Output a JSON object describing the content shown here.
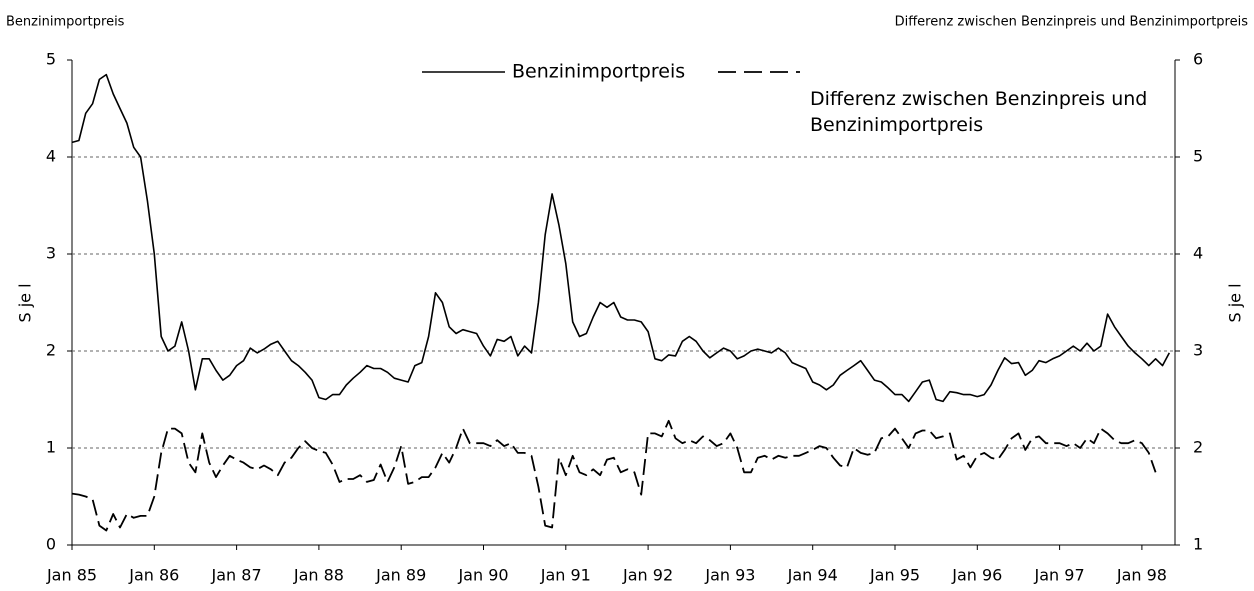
{
  "chart_data": {
    "type": "line",
    "left_title": "Benzinimportpreis",
    "right_title": "Differenz zwischen Benzinpreis und Benzinimportpreis",
    "y_label": "S je l",
    "y2_label": "S je l",
    "categories": [
      "Jan 85",
      null,
      null,
      null,
      null,
      null,
      null,
      null,
      null,
      null,
      null,
      null,
      "Jan 86",
      null,
      null,
      null,
      null,
      null,
      null,
      null,
      null,
      null,
      null,
      null,
      "Jan 87",
      null,
      null,
      null,
      null,
      null,
      null,
      null,
      null,
      null,
      null,
      null,
      "Jan 88",
      null,
      null,
      null,
      null,
      null,
      null,
      null,
      null,
      null,
      null,
      null,
      "Jan 89",
      null,
      null,
      null,
      null,
      null,
      null,
      null,
      null,
      null,
      null,
      null,
      "Jan 90",
      null,
      null,
      null,
      null,
      null,
      null,
      null,
      null,
      null,
      null,
      null,
      "Jan 91",
      null,
      null,
      null,
      null,
      null,
      null,
      null,
      null,
      null,
      null,
      null,
      "Jan 92",
      null,
      null,
      null,
      null,
      null,
      null,
      null,
      null,
      null,
      null,
      null,
      "Jan 93",
      null,
      null,
      null,
      null,
      null,
      null,
      null,
      null,
      null,
      null,
      null,
      "Jan 94",
      null,
      null,
      null,
      null,
      null,
      null,
      null,
      null,
      null,
      null,
      null,
      "Jan 95",
      null,
      null,
      null,
      null,
      null,
      null,
      null,
      null,
      null,
      null,
      null,
      "Jan 96",
      null,
      null,
      null,
      null,
      null,
      null,
      null,
      null,
      null,
      null,
      null,
      "Jan 97",
      null,
      null,
      null,
      null,
      null,
      null,
      null,
      null,
      null,
      null,
      null,
      "Jan 98",
      null,
      null,
      null,
      null
    ],
    "series": [
      {
        "name": "Benzinimportpreis",
        "color": "#000000",
        "dashed": false,
        "values": [
          4.15,
          4.17,
          4.45,
          4.55,
          4.8,
          4.85,
          4.65,
          4.5,
          4.35,
          4.1,
          4.0,
          3.55,
          3.0,
          2.15,
          2.0,
          2.05,
          2.3,
          2.0,
          1.6,
          1.92,
          1.92,
          1.8,
          1.7,
          1.75,
          1.85,
          1.9,
          2.03,
          1.98,
          2.02,
          2.07,
          2.1,
          2.0,
          1.9,
          1.85,
          1.78,
          1.7,
          1.52,
          1.5,
          1.55,
          1.55,
          1.65,
          1.72,
          1.78,
          1.85,
          1.82,
          1.82,
          1.78,
          1.72,
          1.7,
          1.68,
          1.85,
          1.88,
          2.15,
          2.6,
          2.5,
          2.25,
          2.18,
          2.22,
          2.2,
          2.18,
          2.05,
          1.95,
          2.12,
          2.1,
          2.15,
          1.95,
          2.05,
          1.98,
          2.5,
          3.2,
          3.62,
          3.3,
          2.9,
          2.3,
          2.15,
          2.18,
          2.35,
          2.5,
          2.45,
          2.5,
          2.35,
          2.32,
          2.32,
          2.3,
          2.2,
          1.92,
          1.9,
          1.96,
          1.95,
          2.1,
          2.15,
          2.1,
          2.0,
          1.93,
          1.98,
          2.03,
          2.0,
          1.92,
          1.95,
          2.0,
          2.02,
          2.0,
          1.98,
          2.03,
          1.98,
          1.88,
          1.85,
          1.82,
          1.68,
          1.65,
          1.6,
          1.65,
          1.75,
          1.8,
          1.85,
          1.9,
          1.8,
          1.7,
          1.68,
          1.62,
          1.55,
          1.55,
          1.48,
          1.58,
          1.68,
          1.7,
          1.5,
          1.48,
          1.58,
          1.57,
          1.55,
          1.55,
          1.53,
          1.55,
          1.65,
          1.8,
          1.93,
          1.87,
          1.88,
          1.75,
          1.8,
          1.9,
          1.88,
          1.92,
          1.95,
          2.0,
          2.05,
          2.0,
          2.08,
          2.0,
          2.05,
          2.38,
          2.25,
          2.15,
          2.05,
          1.98,
          1.92,
          1.85,
          1.92,
          1.85,
          1.98
        ]
      },
      {
        "name": "Differenz zwischen Benzinpreis und Benzinimportpreis",
        "color": "#000000",
        "dashed": true,
        "axis": "y2",
        "values": [
          1.53,
          1.52,
          1.5,
          1.47,
          1.2,
          1.15,
          1.32,
          1.18,
          1.32,
          1.28,
          1.3,
          1.3,
          1.5,
          1.95,
          2.2,
          2.2,
          2.15,
          1.85,
          1.75,
          2.15,
          1.85,
          1.7,
          1.82,
          1.92,
          1.88,
          1.85,
          1.8,
          1.78,
          1.82,
          1.78,
          1.72,
          1.85,
          1.9,
          2.0,
          2.07,
          2.0,
          1.97,
          1.95,
          1.83,
          1.65,
          1.68,
          1.68,
          1.72,
          1.65,
          1.67,
          1.83,
          1.65,
          1.8,
          2.02,
          1.63,
          1.65,
          1.7,
          1.7,
          1.8,
          1.95,
          1.85,
          2.0,
          2.2,
          2.05,
          2.05,
          2.05,
          2.02,
          2.08,
          2.02,
          2.05,
          1.95,
          1.95,
          1.92,
          1.6,
          1.2,
          1.18,
          1.9,
          1.72,
          1.92,
          1.75,
          1.72,
          1.78,
          1.72,
          1.88,
          1.9,
          1.75,
          1.78,
          1.75,
          1.52,
          2.15,
          2.15,
          2.12,
          2.28,
          2.1,
          2.05,
          2.08,
          2.05,
          2.12,
          2.08,
          2.02,
          2.05,
          2.15,
          2.0,
          1.75,
          1.75,
          1.9,
          1.92,
          1.88,
          1.92,
          1.9,
          1.92,
          1.92,
          1.95,
          1.98,
          2.02,
          2.0,
          1.9,
          1.82,
          1.8,
          2.0,
          1.95,
          1.93,
          1.95,
          2.1,
          2.12,
          2.2,
          2.1,
          2.0,
          2.15,
          2.18,
          2.18,
          2.1,
          2.12,
          2.15,
          1.88,
          1.92,
          1.8,
          1.92,
          1.95,
          1.9,
          1.88,
          1.98,
          2.1,
          2.15,
          1.98,
          2.1,
          2.12,
          2.05,
          2.05,
          2.05,
          2.02,
          2.05,
          2.0,
          2.1,
          2.05,
          2.2,
          2.15,
          2.08,
          2.05,
          2.05,
          2.08,
          2.05,
          1.95,
          1.75,
          null,
          null
        ]
      }
    ],
    "ylim": [
      0,
      5
    ],
    "yticks": [
      0,
      1,
      2,
      3,
      4,
      5
    ],
    "y2lim": [
      1,
      6
    ],
    "y2ticks": [
      1,
      2,
      3,
      4,
      5,
      6
    ],
    "grid": true
  }
}
